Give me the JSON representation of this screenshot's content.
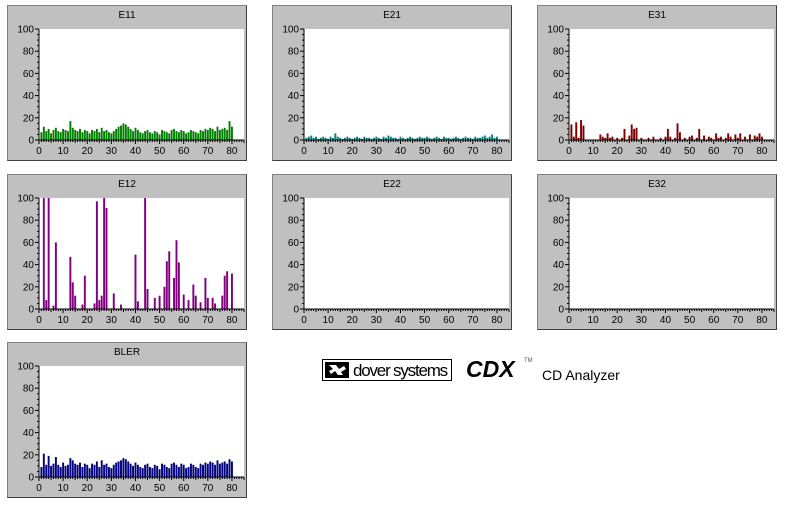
{
  "chart_data": [
    {
      "id": "e11",
      "type": "bar",
      "title": "E11",
      "color": "#008000",
      "xlim": [
        0,
        85
      ],
      "ylim": [
        0,
        100
      ],
      "xticks": [
        0,
        10,
        20,
        30,
        40,
        50,
        60,
        70,
        80
      ],
      "yticks": [
        0,
        20,
        40,
        60,
        80,
        100
      ],
      "x": [
        1,
        2,
        3,
        4,
        5,
        6,
        7,
        8,
        9,
        10,
        11,
        12,
        13,
        14,
        15,
        16,
        17,
        18,
        19,
        20,
        21,
        22,
        23,
        24,
        25,
        26,
        27,
        28,
        29,
        30,
        31,
        32,
        33,
        34,
        35,
        36,
        37,
        38,
        39,
        40,
        41,
        42,
        43,
        44,
        45,
        46,
        47,
        48,
        49,
        50,
        51,
        52,
        53,
        54,
        55,
        56,
        57,
        58,
        59,
        60,
        61,
        62,
        63,
        64,
        65,
        66,
        67,
        68,
        69,
        70,
        71,
        72,
        73,
        74,
        75,
        76,
        77,
        78,
        79,
        80
      ],
      "values": [
        7,
        12,
        8,
        10,
        6,
        9,
        11,
        8,
        7,
        10,
        9,
        8,
        17,
        11,
        9,
        8,
        10,
        7,
        9,
        8,
        6,
        9,
        8,
        10,
        7,
        11,
        8,
        9,
        7,
        6,
        8,
        10,
        12,
        13,
        15,
        14,
        12,
        10,
        8,
        11,
        9,
        7,
        6,
        8,
        9,
        7,
        6,
        8,
        7,
        5,
        9,
        8,
        7,
        6,
        9,
        10,
        8,
        7,
        9,
        8,
        6,
        7,
        9,
        8,
        7,
        6,
        9,
        8,
        10,
        9,
        11,
        10,
        8,
        12,
        9,
        10,
        11,
        9,
        17,
        12
      ]
    },
    {
      "id": "e21",
      "type": "bar",
      "title": "E21",
      "color": "#008080",
      "xlim": [
        0,
        85
      ],
      "ylim": [
        0,
        100
      ],
      "xticks": [
        0,
        10,
        20,
        30,
        40,
        50,
        60,
        70,
        80
      ],
      "yticks": [
        0,
        20,
        40,
        60,
        80,
        100
      ],
      "x": [
        1,
        2,
        3,
        4,
        5,
        6,
        7,
        8,
        9,
        10,
        11,
        12,
        13,
        14,
        15,
        16,
        17,
        18,
        19,
        20,
        21,
        22,
        23,
        24,
        25,
        26,
        27,
        28,
        29,
        30,
        31,
        32,
        33,
        34,
        35,
        36,
        37,
        38,
        39,
        40,
        41,
        42,
        43,
        44,
        45,
        46,
        47,
        48,
        49,
        50,
        51,
        52,
        53,
        54,
        55,
        56,
        57,
        58,
        59,
        60,
        61,
        62,
        63,
        64,
        65,
        66,
        67,
        68,
        69,
        70,
        71,
        72,
        73,
        74,
        75,
        76,
        77,
        78,
        79,
        80
      ],
      "values": [
        2,
        3,
        4,
        2,
        3,
        1,
        2,
        3,
        2,
        1,
        3,
        2,
        6,
        3,
        2,
        1,
        2,
        3,
        2,
        1,
        2,
        3,
        2,
        1,
        3,
        2,
        2,
        1,
        2,
        3,
        2,
        1,
        3,
        2,
        4,
        3,
        2,
        2,
        1,
        3,
        2,
        1,
        2,
        3,
        2,
        1,
        2,
        3,
        2,
        2,
        3,
        2,
        1,
        2,
        3,
        2,
        1,
        3,
        2,
        2,
        1,
        2,
        3,
        2,
        1,
        2,
        3,
        2,
        2,
        1,
        3,
        2,
        2,
        3,
        4,
        2,
        3,
        5,
        2,
        3
      ]
    },
    {
      "id": "e31",
      "type": "bar",
      "title": "E31",
      "color": "#800000",
      "xlim": [
        0,
        85
      ],
      "ylim": [
        0,
        100
      ],
      "xticks": [
        0,
        10,
        20,
        30,
        40,
        50,
        60,
        70,
        80
      ],
      "yticks": [
        0,
        20,
        40,
        60,
        80,
        100
      ],
      "x": [
        1,
        2,
        3,
        4,
        5,
        6,
        13,
        14,
        15,
        16,
        17,
        18,
        20,
        22,
        23,
        25,
        26,
        27,
        28,
        30,
        33,
        35,
        38,
        40,
        41,
        42,
        44,
        45,
        46,
        48,
        50,
        51,
        53,
        54,
        56,
        58,
        59,
        61,
        62,
        63,
        65,
        66,
        67,
        69,
        70,
        71,
        73,
        75,
        77,
        78,
        79,
        80
      ],
      "values": [
        14,
        3,
        16,
        2,
        18,
        13,
        5,
        3,
        2,
        6,
        2,
        3,
        2,
        2,
        10,
        4,
        14,
        10,
        11,
        2,
        2,
        3,
        2,
        3,
        10,
        3,
        2,
        15,
        7,
        2,
        3,
        4,
        2,
        10,
        4,
        3,
        2,
        6,
        2,
        3,
        2,
        6,
        3,
        5,
        2,
        6,
        3,
        5,
        4,
        3,
        6,
        3
      ]
    },
    {
      "id": "e12",
      "type": "bar",
      "title": "E12",
      "color": "#800080",
      "xlim": [
        0,
        85
      ],
      "ylim": [
        0,
        100
      ],
      "xticks": [
        0,
        10,
        20,
        30,
        40,
        50,
        60,
        70,
        80
      ],
      "yticks": [
        0,
        20,
        40,
        60,
        80,
        100
      ],
      "x": [
        2,
        3,
        4,
        6,
        7,
        13,
        14,
        15,
        18,
        19,
        23,
        24,
        25,
        26,
        27,
        28,
        31,
        34,
        40,
        41,
        44,
        45,
        48,
        50,
        52,
        53,
        54,
        56,
        57,
        58,
        60,
        62,
        64,
        65,
        67,
        69,
        70,
        72,
        73,
        76,
        77,
        78,
        80
      ],
      "values": [
        100,
        8,
        100,
        3,
        60,
        47,
        24,
        12,
        4,
        30,
        5,
        97,
        8,
        12,
        100,
        91,
        14,
        4,
        49,
        7,
        100,
        18,
        10,
        12,
        20,
        43,
        52,
        28,
        62,
        42,
        13,
        8,
        22,
        12,
        6,
        28,
        10,
        10,
        5,
        12,
        30,
        34,
        32
      ]
    },
    {
      "id": "e22",
      "type": "bar",
      "title": "E22",
      "color": "#000080",
      "xlim": [
        0,
        85
      ],
      "ylim": [
        0,
        100
      ],
      "xticks": [
        0,
        10,
        20,
        30,
        40,
        50,
        60,
        70,
        80
      ],
      "yticks": [
        0,
        20,
        40,
        60,
        80,
        100
      ],
      "x": [],
      "values": []
    },
    {
      "id": "e32",
      "type": "bar",
      "title": "E32",
      "color": "#000080",
      "xlim": [
        0,
        85
      ],
      "ylim": [
        0,
        100
      ],
      "xticks": [
        0,
        10,
        20,
        30,
        40,
        50,
        60,
        70,
        80
      ],
      "yticks": [
        0,
        20,
        40,
        60,
        80,
        100
      ],
      "x": [],
      "values": []
    },
    {
      "id": "bler",
      "type": "bar",
      "title": "BLER",
      "color": "#000080",
      "xlim": [
        0,
        85
      ],
      "ylim": [
        0,
        100
      ],
      "xticks": [
        0,
        10,
        20,
        30,
        40,
        50,
        60,
        70,
        80
      ],
      "yticks": [
        0,
        20,
        40,
        60,
        80,
        100
      ],
      "x": [
        1,
        2,
        3,
        4,
        5,
        6,
        7,
        8,
        9,
        10,
        11,
        12,
        13,
        14,
        15,
        16,
        17,
        18,
        19,
        20,
        21,
        22,
        23,
        24,
        25,
        26,
        27,
        28,
        29,
        30,
        31,
        32,
        33,
        34,
        35,
        36,
        37,
        38,
        39,
        40,
        41,
        42,
        43,
        44,
        45,
        46,
        47,
        48,
        49,
        50,
        51,
        52,
        53,
        54,
        55,
        56,
        57,
        58,
        59,
        60,
        61,
        62,
        63,
        64,
        65,
        66,
        67,
        68,
        69,
        70,
        71,
        72,
        73,
        74,
        75,
        76,
        77,
        78,
        79,
        80
      ],
      "values": [
        9,
        21,
        11,
        19,
        10,
        12,
        18,
        11,
        9,
        13,
        10,
        11,
        17,
        15,
        12,
        11,
        13,
        9,
        12,
        11,
        8,
        12,
        11,
        14,
        9,
        15,
        11,
        12,
        9,
        8,
        11,
        13,
        14,
        15,
        17,
        16,
        14,
        12,
        10,
        13,
        11,
        9,
        8,
        11,
        12,
        9,
        8,
        11,
        10,
        7,
        12,
        11,
        9,
        8,
        12,
        13,
        11,
        9,
        12,
        11,
        8,
        9,
        12,
        11,
        9,
        8,
        12,
        11,
        13,
        12,
        14,
        13,
        11,
        15,
        12,
        13,
        14,
        12,
        16,
        14
      ]
    }
  ],
  "brand": {
    "company": "dover systems",
    "product": "CDX",
    "trademark": "TM",
    "subtitle": "CD Analyzer"
  }
}
